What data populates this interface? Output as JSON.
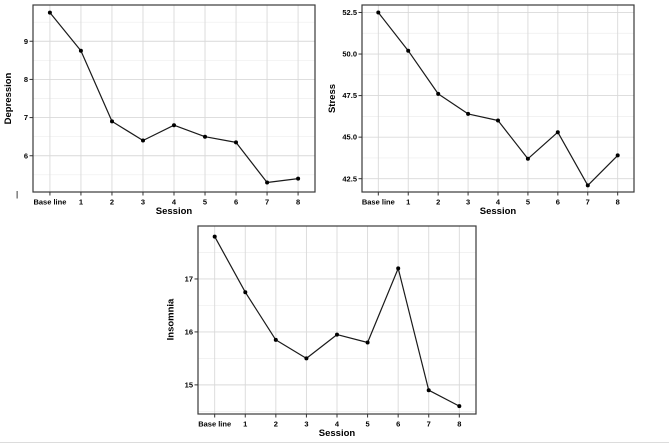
{
  "page": {
    "stray_mark": "|"
  },
  "colors": {
    "line": "#1a1a1a",
    "point": "#000000",
    "grid_major": "#d9d9d9",
    "grid_minor": "#eeeeee",
    "panel_border": "#3a3a3a",
    "tick": "#333333",
    "text": "#000000",
    "background": "#ffffff"
  },
  "chart_data": [
    {
      "type": "line",
      "title": "",
      "ylabel": "Depression",
      "xlabel": "Session",
      "categories": [
        "Base line",
        "1",
        "2",
        "3",
        "4",
        "5",
        "6",
        "7",
        "8"
      ],
      "values": [
        9.75,
        8.75,
        6.9,
        6.4,
        6.8,
        6.5,
        6.35,
        5.3,
        5.4
      ],
      "yticks": [
        6,
        7,
        8,
        9
      ],
      "ytick_labels": [
        "6",
        "7",
        "8",
        "9"
      ],
      "ylim": [
        5.05,
        9.95
      ],
      "grid": "horizontal major+minor, vertical major at each session",
      "legend": "none",
      "marker": "filled-circle"
    },
    {
      "type": "line",
      "title": "",
      "ylabel": "Stress",
      "xlabel": "Session",
      "categories": [
        "Base line",
        "1",
        "2",
        "3",
        "4",
        "5",
        "6",
        "7",
        "8"
      ],
      "values": [
        52.5,
        50.2,
        47.6,
        46.4,
        46.0,
        43.7,
        45.3,
        42.1,
        43.9
      ],
      "yticks": [
        42.5,
        45.0,
        47.5,
        50.0,
        52.5
      ],
      "ytick_labels": [
        "42.5",
        "45.0",
        "47.5",
        "50.0",
        "52.5"
      ],
      "ylim": [
        41.7,
        52.95
      ],
      "grid": "horizontal major+minor, vertical major at each session",
      "legend": "none",
      "marker": "filled-circle"
    },
    {
      "type": "line",
      "title": "",
      "ylabel": "Insomnia",
      "xlabel": "Session",
      "categories": [
        "Base line",
        "1",
        "2",
        "3",
        "4",
        "5",
        "6",
        "7",
        "8"
      ],
      "values": [
        17.8,
        16.75,
        15.85,
        15.5,
        15.95,
        15.8,
        17.2,
        14.9,
        14.6
      ],
      "yticks": [
        15,
        16,
        17
      ],
      "ytick_labels": [
        "15",
        "16",
        "17"
      ],
      "ylim": [
        14.45,
        18.0
      ],
      "grid": "horizontal major+minor, vertical major at each session",
      "legend": "none",
      "marker": "filled-circle"
    }
  ]
}
